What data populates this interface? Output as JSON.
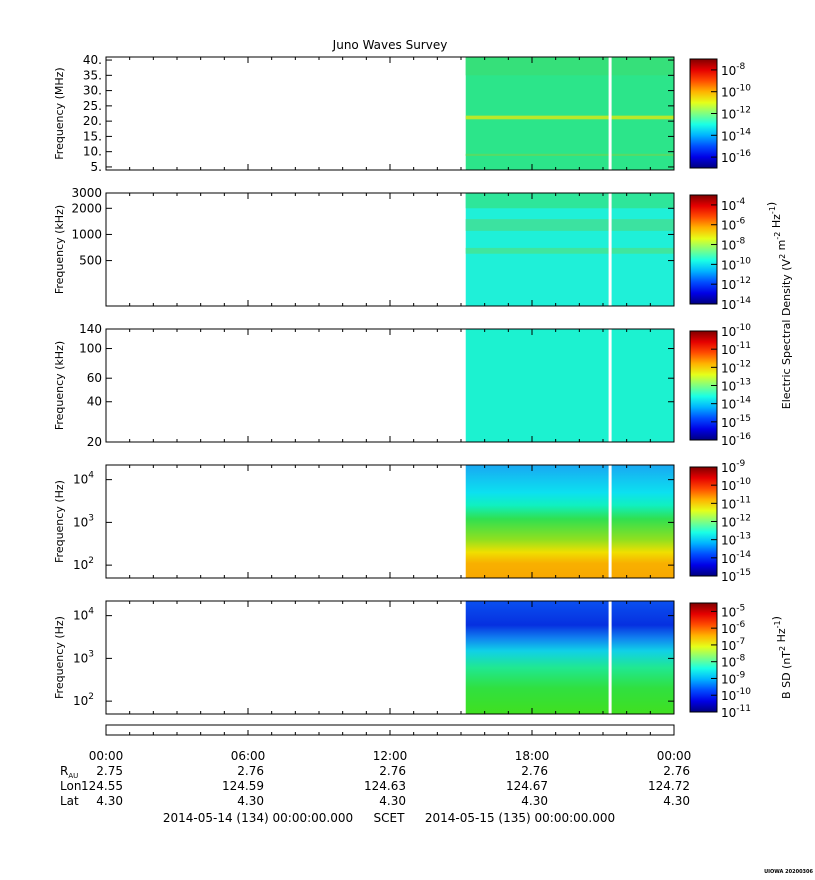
{
  "chart_data": {
    "type": "heatmap",
    "title": "Juno Waves Survey",
    "data_start_hour": 15.2,
    "gap_hour": 21.3,
    "panels": [
      {
        "ylabel": "Frequency (MHz)",
        "ylim": [
          4.0,
          41.0
        ],
        "scale": "linear",
        "ticks": [
          {
            "v": 5,
            "label": "5."
          },
          {
            "v": 10,
            "label": "10."
          },
          {
            "v": 15,
            "label": "15."
          },
          {
            "v": 20,
            "label": "20."
          },
          {
            "v": 25,
            "label": "25."
          },
          {
            "v": 30,
            "label": "30."
          },
          {
            "v": 35,
            "label": "35."
          },
          {
            "v": 40,
            "label": "40."
          }
        ],
        "background": "#2ce58a",
        "bands": [
          {
            "from": 35,
            "to": 41,
            "color": "#36e07a"
          },
          {
            "from": 20.6,
            "to": 21.8,
            "color": "#b8e82a"
          },
          {
            "from": 8.6,
            "to": 9.3,
            "color": "#55dc66"
          }
        ],
        "colorbar": {
          "log_min": -17,
          "log_max": -7,
          "ticks": [
            {
              "exp": "-8",
              "v": -8
            },
            {
              "exp": "-10",
              "v": -10
            },
            {
              "exp": "-12",
              "v": -12
            },
            {
              "exp": "-14",
              "v": -14
            },
            {
              "exp": "-16",
              "v": -16
            }
          ]
        }
      },
      {
        "ylabel": "Frequency (kHz)",
        "ylim": [
          150,
          3000
        ],
        "scale": "log",
        "ticks": [
          {
            "v": 500,
            "label": "500"
          },
          {
            "v": 1000,
            "label": "1000"
          },
          {
            "v": 2000,
            "label": "2000"
          },
          {
            "v": 3000,
            "label": "3000"
          }
        ],
        "background": "#1ff0d8",
        "bands": [
          {
            "from": 2000,
            "to": 3000,
            "color": "#2ee69a"
          },
          {
            "from": 1100,
            "to": 1500,
            "color": "#3ce2a0"
          },
          {
            "from": 600,
            "to": 700,
            "color": "#3fe69e"
          }
        ],
        "colorbar": {
          "log_min": -14,
          "log_max": -3,
          "ticks": [
            {
              "exp": "-4",
              "v": -4
            },
            {
              "exp": "-6",
              "v": -6
            },
            {
              "exp": "-8",
              "v": -8
            },
            {
              "exp": "-10",
              "v": -10
            },
            {
              "exp": "-12",
              "v": -12
            },
            {
              "exp": "-14",
              "v": -14
            }
          ]
        }
      },
      {
        "ylabel": "Frequency (kHz)",
        "ylim": [
          20,
          140
        ],
        "scale": "log",
        "ticks": [
          {
            "v": 20,
            "label": "20"
          },
          {
            "v": 40,
            "label": "40"
          },
          {
            "v": 60,
            "label": "60"
          },
          {
            "v": 100,
            "label": "100"
          },
          {
            "v": 140,
            "label": "140"
          }
        ],
        "background": "#1cf2d0",
        "bands": [],
        "colorbar": {
          "log_min": -16,
          "log_max": -10,
          "ticks": [
            {
              "exp": "-10",
              "v": -10
            },
            {
              "exp": "-11",
              "v": -11
            },
            {
              "exp": "-12",
              "v": -12
            },
            {
              "exp": "-13",
              "v": -13
            },
            {
              "exp": "-14",
              "v": -14
            },
            {
              "exp": "-15",
              "v": -15
            },
            {
              "exp": "-16",
              "v": -16
            }
          ]
        }
      },
      {
        "ylabel": "Frequency (Hz)",
        "ylim": [
          50,
          22000
        ],
        "scale": "log",
        "ticks": [
          {
            "v": 100,
            "label": "10",
            "exp": "2"
          },
          {
            "v": 1000,
            "label": "10",
            "exp": "3"
          },
          {
            "v": 10000,
            "label": "10",
            "exp": "4"
          }
        ],
        "gradient": [
          {
            "f": 22000,
            "color": "#19a8f2"
          },
          {
            "f": 5000,
            "color": "#0ce0f0"
          },
          {
            "f": 2500,
            "color": "#10f0c0"
          },
          {
            "f": 1200,
            "color": "#30e050"
          },
          {
            "f": 400,
            "color": "#8ee020"
          },
          {
            "f": 200,
            "color": "#f0e000"
          },
          {
            "f": 110,
            "color": "#f8b000"
          },
          {
            "f": 50,
            "color": "#f8a800"
          }
        ],
        "colorbar": {
          "log_min": -15,
          "log_max": -9,
          "ticks": [
            {
              "exp": "-9",
              "v": -9
            },
            {
              "exp": "-10",
              "v": -10
            },
            {
              "exp": "-11",
              "v": -11
            },
            {
              "exp": "-12",
              "v": -12
            },
            {
              "exp": "-13",
              "v": -13
            },
            {
              "exp": "-14",
              "v": -14
            },
            {
              "exp": "-15",
              "v": -15
            }
          ]
        }
      },
      {
        "ylabel": "Frequency (Hz)",
        "ylim": [
          50,
          22000
        ],
        "scale": "log",
        "ticks": [
          {
            "v": 100,
            "label": "10",
            "exp": "2"
          },
          {
            "v": 1000,
            "label": "10",
            "exp": "3"
          },
          {
            "v": 10000,
            "label": "10",
            "exp": "4"
          }
        ],
        "gradient": [
          {
            "f": 22000,
            "color": "#0a50f0"
          },
          {
            "f": 6000,
            "color": "#0630e0"
          },
          {
            "f": 3000,
            "color": "#1080f0"
          },
          {
            "f": 1500,
            "color": "#10d0e8"
          },
          {
            "f": 600,
            "color": "#20e890"
          },
          {
            "f": 200,
            "color": "#30e040"
          },
          {
            "f": 50,
            "color": "#40e020"
          }
        ],
        "colorbar": {
          "log_min": -11,
          "log_max": -4.5,
          "ticks": [
            {
              "exp": "-5",
              "v": -5
            },
            {
              "exp": "-6",
              "v": -6
            },
            {
              "exp": "-7",
              "v": -7
            },
            {
              "exp": "-8",
              "v": -8
            },
            {
              "exp": "-9",
              "v": -9
            },
            {
              "exp": "-10",
              "v": -10
            },
            {
              "exp": "-11",
              "v": -11
            }
          ]
        }
      }
    ],
    "colorbar_labels": [
      {
        "panels": [
          1,
          3
        ],
        "text_pre": "Electric Spectral Density (V",
        "text_sup1": "2",
        "text_mid": " m",
        "text_sup2": "-2",
        "text_mid2": " Hz",
        "text_sup3": "-1",
        "text_post": ")"
      },
      {
        "panels": [
          4,
          4
        ],
        "text_pre": "B SD (nT",
        "text_sup1": "2",
        "text_mid": " Hz",
        "text_sup2": "-1",
        "text_mid2": "",
        "text_sup3": "",
        "text_post": ")"
      }
    ],
    "x": {
      "range_hours": [
        0,
        24
      ],
      "ticks": [
        "00:00",
        "06:00",
        "12:00",
        "18:00",
        "00:00"
      ],
      "ephemeris": [
        {
          "name": "R",
          "sub": "AU",
          "values": [
            "2.75",
            "2.76",
            "2.76",
            "2.76",
            "2.76"
          ]
        },
        {
          "name": "Lon",
          "sub": "",
          "values": [
            "124.55",
            "124.59",
            "124.63",
            "124.67",
            "124.72"
          ]
        },
        {
          "name": "Lat",
          "sub": "",
          "values": [
            "4.30",
            "4.30",
            "4.30",
            "4.30",
            "4.30"
          ]
        }
      ],
      "start_label": "2014-05-14 (134) 00:00:00.000",
      "scet_label": "SCET",
      "end_label": "2014-05-15 (135) 00:00:00.000"
    },
    "footer_credit": "UIOWA 20200306"
  }
}
